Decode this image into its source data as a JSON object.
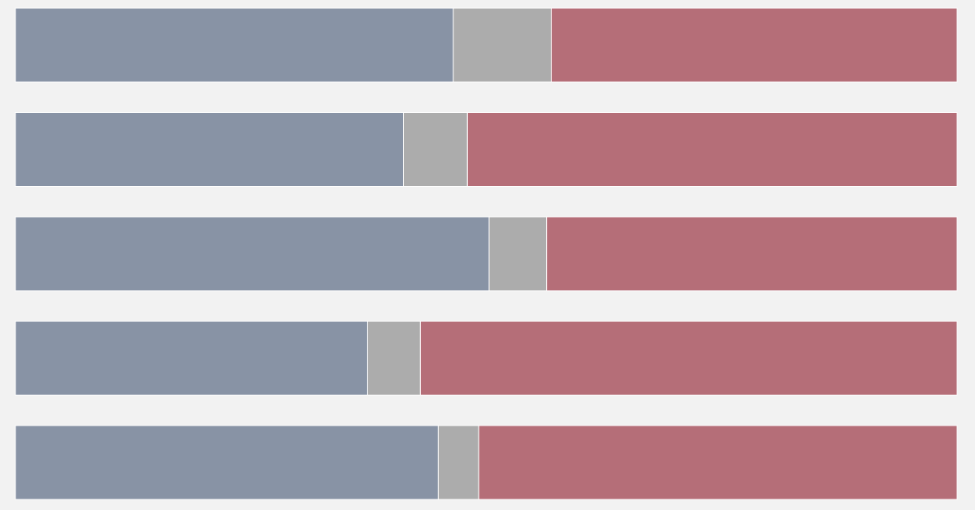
{
  "chart_data": {
    "type": "stacked_barh",
    "categories": [
      null,
      null,
      null,
      null,
      null
    ],
    "series": [
      {
        "color": "#8893a5",
        "values": [
          46.5,
          41.2,
          50.3,
          37.4,
          44.9
        ]
      },
      {
        "color": "#acacac",
        "values": [
          10.4,
          6.8,
          6.1,
          5.6,
          4.3
        ]
      },
      {
        "color": "#b56e78",
        "values": [
          43.1,
          52.0,
          43.6,
          57.0,
          50.8
        ]
      }
    ],
    "xlim": [
      0,
      100
    ]
  }
}
